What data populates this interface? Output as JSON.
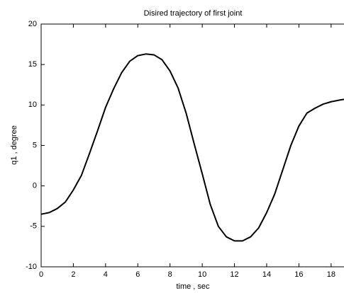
{
  "chart_data": {
    "type": "line",
    "title": "Disired trajectory of first joint",
    "x_label": "time , sec",
    "y_label": "q1 , degree",
    "x": [
      0,
      0.5,
      1,
      1.5,
      2,
      2.5,
      3,
      3.5,
      4,
      4.5,
      5,
      5.5,
      6,
      6.5,
      7,
      7.5,
      8,
      8.5,
      9,
      9.5,
      10,
      10.5,
      11,
      11.5,
      12,
      12.5,
      13,
      13.5,
      14,
      14.5,
      15,
      15.5,
      16,
      16.5,
      17,
      17.5,
      18,
      18.5,
      18.8
    ],
    "series": [
      {
        "name": "q1",
        "color": "#000000",
        "values": [
          -3.5,
          -3.3,
          -2.8,
          -2,
          -0.5,
          1.3,
          4,
          6.8,
          9.7,
          12,
          14,
          15.4,
          16.1,
          16.3,
          16.2,
          15.6,
          14.2,
          12.1,
          9,
          5.2,
          1.5,
          -2.3,
          -5,
          -6.3,
          -6.8,
          -6.8,
          -6.3,
          -5.2,
          -3.3,
          -1,
          2,
          5,
          7.4,
          9,
          9.6,
          10.1,
          10.4,
          10.6,
          10.7
        ]
      }
    ],
    "xlim": [
      0,
      18.8
    ],
    "ylim": [
      -10,
      20
    ],
    "xticks": [
      0,
      2,
      4,
      6,
      8,
      10,
      12,
      14,
      16,
      18
    ],
    "yticks": [
      -10,
      -5,
      0,
      5,
      10,
      15,
      20
    ],
    "grid": false
  }
}
